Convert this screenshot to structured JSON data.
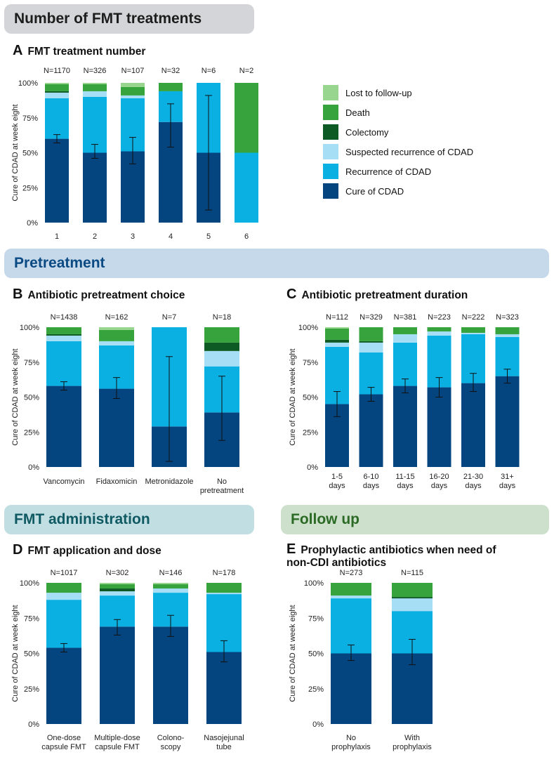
{
  "banners": {
    "fmt": "Number of FMT treatments",
    "pretreatment": "Pretreatment",
    "administration": "FMT administration",
    "followup": "Follow up"
  },
  "legend": [
    {
      "label": "Lost to follow-up",
      "color": "#98d68f"
    },
    {
      "label": "Death",
      "color": "#36a33d"
    },
    {
      "label": "Colectomy",
      "color": "#0d5a24"
    },
    {
      "label": "Suspected recurrence of CDAD",
      "color": "#a6def6"
    },
    {
      "label": "Recurrence of CDAD",
      "color": "#0bb0e3"
    },
    {
      "label": "Cure of CDAD",
      "color": "#04447f"
    }
  ],
  "chart_data": [
    {
      "id": "A",
      "letter": "A",
      "title": "FMT treatment  number",
      "type": "bar",
      "stacked": true,
      "ylabel": "Cure of CDAD at week eight",
      "yticks": [
        "0%",
        "25%",
        "50%",
        "75%",
        "100%"
      ],
      "ylim": [
        0,
        100
      ],
      "categories": [
        [
          "1"
        ],
        [
          "2"
        ],
        [
          "3"
        ],
        [
          "4"
        ],
        [
          "5"
        ],
        [
          "6"
        ]
      ],
      "n_labels": [
        "N=1170",
        "N=326",
        "N=107",
        "N=32",
        "N=6",
        "N=2"
      ],
      "series": [
        {
          "name": "Cure of CDAD",
          "values": [
            60,
            50,
            51,
            72,
            50,
            0
          ]
        },
        {
          "name": "Recurrence of CDAD",
          "values": [
            29,
            40,
            38,
            22,
            50,
            50
          ]
        },
        {
          "name": "Suspected recurrence of CDAD",
          "values": [
            4,
            4,
            2,
            0,
            0,
            0
          ]
        },
        {
          "name": "Colectomy",
          "values": [
            1,
            0,
            0,
            0,
            0,
            0
          ]
        },
        {
          "name": "Death",
          "values": [
            5,
            5,
            6,
            6,
            0,
            50
          ]
        },
        {
          "name": "Lost to follow-up",
          "values": [
            1,
            1,
            3,
            0,
            0,
            0
          ]
        }
      ],
      "error_bars": [
        [
          57,
          63
        ],
        [
          46,
          56
        ],
        [
          42,
          61
        ],
        [
          54,
          85
        ],
        [
          9,
          91
        ],
        null
      ]
    },
    {
      "id": "B",
      "letter": "B",
      "title": "Antibiotic pretreatment choice",
      "type": "bar",
      "stacked": true,
      "ylabel": "Cure of CDAD at week eight",
      "yticks": [
        "0%",
        "25%",
        "50%",
        "75%",
        "100%"
      ],
      "ylim": [
        0,
        100
      ],
      "categories": [
        [
          "Vancomycin"
        ],
        [
          "Fidaxomicin"
        ],
        [
          "Metronidazole"
        ],
        [
          "No",
          "pretreatment"
        ]
      ],
      "n_labels": [
        "N=1438",
        "N=162",
        "N=7",
        "N=18"
      ],
      "series": [
        {
          "name": "Cure of CDAD",
          "values": [
            58,
            56,
            29,
            39
          ]
        },
        {
          "name": "Recurrence of CDAD",
          "values": [
            32,
            31,
            71,
            33
          ]
        },
        {
          "name": "Suspected recurrence of CDAD",
          "values": [
            4,
            3,
            0,
            11
          ]
        },
        {
          "name": "Colectomy",
          "values": [
            1,
            0,
            0,
            6
          ]
        },
        {
          "name": "Death",
          "values": [
            5,
            8,
            0,
            11
          ]
        },
        {
          "name": "Lost to follow-up",
          "values": [
            0,
            2,
            0,
            0
          ]
        }
      ],
      "error_bars": [
        [
          55,
          61
        ],
        [
          49,
          64
        ],
        [
          4,
          79
        ],
        [
          19,
          65
        ]
      ]
    },
    {
      "id": "C",
      "letter": "C",
      "title": "Antibiotic pretreatment duration",
      "type": "bar",
      "stacked": true,
      "ylabel": "Cure of CDAD at week eight",
      "yticks": [
        "0%",
        "25%",
        "50%",
        "75%",
        "100%"
      ],
      "ylim": [
        0,
        100
      ],
      "categories": [
        [
          "1-5",
          "days"
        ],
        [
          "6-10",
          "days"
        ],
        [
          "11-15",
          "days"
        ],
        [
          "16-20",
          "days"
        ],
        [
          "21-30",
          "days"
        ],
        [
          "31+",
          "days"
        ]
      ],
      "n_labels": [
        "N=112",
        "N=329",
        "N=381",
        "N=223",
        "N=222",
        "N=323"
      ],
      "series": [
        {
          "name": "Cure of CDAD",
          "values": [
            45,
            52,
            58,
            57,
            60,
            65
          ]
        },
        {
          "name": "Recurrence of CDAD",
          "values": [
            41,
            30,
            31,
            37,
            35,
            28
          ]
        },
        {
          "name": "Suspected recurrence of CDAD",
          "values": [
            3,
            7,
            6,
            3,
            1,
            2
          ]
        },
        {
          "name": "Colectomy",
          "values": [
            2,
            1,
            0,
            0,
            0,
            0
          ]
        },
        {
          "name": "Death",
          "values": [
            8,
            10,
            5,
            3,
            4,
            5
          ]
        },
        {
          "name": "Lost to follow-up",
          "values": [
            1,
            0,
            0,
            0,
            0,
            0
          ]
        }
      ],
      "error_bars": [
        [
          36,
          54
        ],
        [
          47,
          57
        ],
        [
          53,
          63
        ],
        [
          50,
          64
        ],
        [
          54,
          67
        ],
        [
          60,
          70
        ]
      ]
    },
    {
      "id": "D",
      "letter": "D",
      "title": "FMT application and dose",
      "type": "bar",
      "stacked": true,
      "ylabel": "Cure of CDAD at week eight",
      "yticks": [
        "0%",
        "25%",
        "50%",
        "75%",
        "100%"
      ],
      "ylim": [
        0,
        100
      ],
      "categories": [
        [
          "One-dose",
          "capsule FMT"
        ],
        [
          "Multiple-dose",
          "capsule FMT"
        ],
        [
          "Colono-",
          "scopy"
        ],
        [
          "Nasojejunal",
          "tube"
        ]
      ],
      "n_labels": [
        "N=1017",
        "N=302",
        "N=146",
        "N=178"
      ],
      "series": [
        {
          "name": "Cure of CDAD",
          "values": [
            54,
            69,
            69,
            51
          ]
        },
        {
          "name": "Recurrence of CDAD",
          "values": [
            34,
            22,
            24,
            41
          ]
        },
        {
          "name": "Suspected recurrence of CDAD",
          "values": [
            5,
            3,
            3,
            1
          ]
        },
        {
          "name": "Colectomy",
          "values": [
            0,
            2,
            0,
            0
          ]
        },
        {
          "name": "Death",
          "values": [
            7,
            3,
            3,
            7
          ]
        },
        {
          "name": "Lost to follow-up",
          "values": [
            0,
            1,
            1,
            0
          ]
        }
      ],
      "error_bars": [
        [
          51,
          57
        ],
        [
          63,
          74
        ],
        [
          62,
          77
        ],
        [
          44,
          59
        ]
      ]
    },
    {
      "id": "E",
      "letter": "E",
      "title": "Prophylactic antibiotics when need of non-CDI antibiotics",
      "type": "bar",
      "stacked": true,
      "ylabel": "Cure of CDAD at week eight",
      "yticks": [
        "0%",
        "25%",
        "50%",
        "75%",
        "100%"
      ],
      "ylim": [
        0,
        100
      ],
      "categories": [
        [
          "No",
          "prophylaxis"
        ],
        [
          "With",
          "prophylaxis"
        ]
      ],
      "n_labels": [
        "N=273",
        "N=115"
      ],
      "series": [
        {
          "name": "Cure of CDAD",
          "values": [
            50,
            50
          ]
        },
        {
          "name": "Recurrence of CDAD",
          "values": [
            39,
            30
          ]
        },
        {
          "name": "Suspected recurrence of CDAD",
          "values": [
            2,
            9
          ]
        },
        {
          "name": "Colectomy",
          "values": [
            0,
            1
          ]
        },
        {
          "name": "Death",
          "values": [
            9,
            10
          ]
        },
        {
          "name": "Lost to follow-up",
          "values": [
            0,
            0
          ]
        }
      ],
      "error_bars": [
        [
          45,
          56
        ],
        [
          42,
          60
        ]
      ]
    }
  ]
}
